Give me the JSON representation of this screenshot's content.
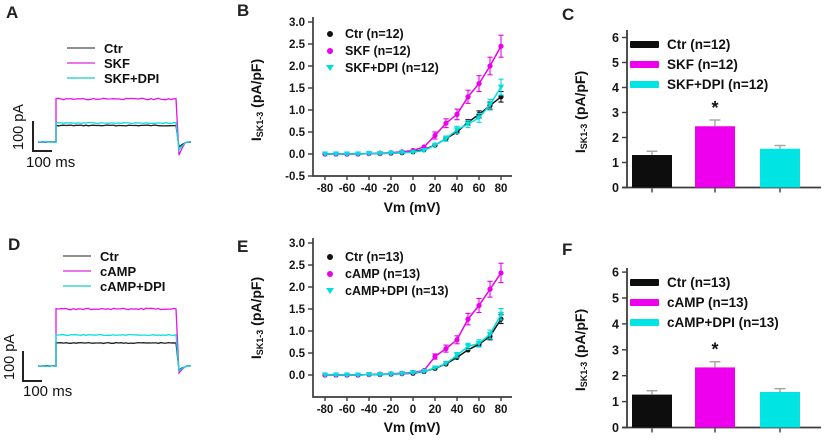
{
  "colors": {
    "black": "#121212",
    "magenta": "#ea00ea",
    "cyan": "#00dede",
    "axis": "#3c3c3c",
    "error_gray": "#a3a3a3"
  },
  "panels": {
    "A": {
      "label": "A",
      "legend": [
        {
          "label": "Ctr",
          "color": "#8f8f8f"
        },
        {
          "label": "SKF",
          "color": "#e878e8"
        },
        {
          "label": "SKF+DPI",
          "color": "#6fe0e0"
        }
      ],
      "scale_v": "100 pA",
      "scale_h": "100 ms",
      "baseline": 142,
      "x_start": 38,
      "x_on": 56,
      "x_off": 178,
      "x_end": 192,
      "traces": [
        {
          "name": "Ctr",
          "color": "#1f1f1f",
          "plateau": 125.5,
          "undershoot": 5
        },
        {
          "name": "SKF",
          "color": "#e813e8",
          "plateau": 99,
          "undershoot": 13
        },
        {
          "name": "SKF+DPI",
          "color": "#10dcdc",
          "plateau": 123,
          "undershoot": 8
        }
      ]
    },
    "D": {
      "label": "D",
      "legend": [
        {
          "label": "Ctr",
          "color": "#8f8f8f"
        },
        {
          "label": "cAMP",
          "color": "#e878e8"
        },
        {
          "label": "cAMP+DPI",
          "color": "#6fe0e0"
        }
      ],
      "scale_v": "100 pA",
      "scale_h": "100 ms",
      "baseline": 366,
      "x_start": 38,
      "x_on": 56,
      "x_off": 178,
      "x_end": 192,
      "traces": [
        {
          "name": "Ctr",
          "color": "#1f1f1f",
          "plateau": 343,
          "undershoot": 4
        },
        {
          "name": "cAMP",
          "color": "#e813e8",
          "plateau": 309,
          "undershoot": 7
        },
        {
          "name": "cAMP+DPI",
          "color": "#10dcdc",
          "plateau": 335,
          "undershoot": 5
        }
      ]
    },
    "B": {
      "label": "B"
    },
    "C": {
      "label": "C"
    },
    "E": {
      "label": "E"
    },
    "F": {
      "label": "F"
    }
  },
  "chart_data": [
    {
      "panel": "B",
      "type": "line",
      "xlabel": "Vm (mV)",
      "ylabel": {
        "pre": "I",
        "sub": "SK1-3",
        "post": " (pA/pF)"
      },
      "ylim": [
        -0.5,
        3.0
      ],
      "yticks": [
        -0.5,
        0.0,
        0.5,
        1.0,
        1.5,
        2.0,
        2.5,
        3.0
      ],
      "xticks": [
        -80,
        -60,
        -40,
        -20,
        0,
        20,
        40,
        60,
        80
      ],
      "x": [
        -80,
        -70,
        -60,
        -50,
        -40,
        -30,
        -20,
        -10,
        0,
        10,
        20,
        30,
        40,
        50,
        60,
        70,
        80
      ],
      "series": [
        {
          "name": "Ctr (n=12)",
          "color": "#121212",
          "marker": "circle",
          "values": [
            0,
            0,
            0,
            0,
            0.01,
            0.01,
            0.02,
            0.03,
            0.05,
            0.1,
            0.2,
            0.35,
            0.5,
            0.72,
            0.9,
            1.1,
            1.3
          ],
          "errors": [
            0.01,
            0.01,
            0.01,
            0.01,
            0.01,
            0.01,
            0.02,
            0.02,
            0.02,
            0.03,
            0.04,
            0.05,
            0.05,
            0.06,
            0.08,
            0.08,
            0.12
          ]
        },
        {
          "name": "SKF (n=12)",
          "color": "#ea00ea",
          "marker": "circle",
          "values": [
            0,
            0,
            0,
            0,
            0.01,
            0.02,
            0.03,
            0.05,
            0.08,
            0.16,
            0.42,
            0.7,
            0.9,
            1.3,
            1.6,
            2.0,
            2.45
          ],
          "errors": [
            0.01,
            0.01,
            0.01,
            0.01,
            0.01,
            0.02,
            0.02,
            0.03,
            0.03,
            0.05,
            0.08,
            0.1,
            0.12,
            0.15,
            0.18,
            0.2,
            0.25
          ]
        },
        {
          "name": "SKF+DPI (n=12)",
          "color": "#00dede",
          "marker": "triangle",
          "values": [
            0,
            0,
            0,
            0,
            0.01,
            0.01,
            0.02,
            0.03,
            0.04,
            0.08,
            0.2,
            0.35,
            0.55,
            0.68,
            0.82,
            1.12,
            1.52
          ],
          "errors": [
            0.01,
            0.01,
            0.01,
            0.01,
            0.01,
            0.01,
            0.02,
            0.02,
            0.02,
            0.03,
            0.05,
            0.06,
            0.08,
            0.08,
            0.1,
            0.12,
            0.18
          ]
        }
      ]
    },
    {
      "panel": "C",
      "type": "bar",
      "ylabel": {
        "pre": "I",
        "sub": "SK1-3",
        "post": " (pA/pF)"
      },
      "ylim": [
        0,
        6
      ],
      "yticks": [
        0,
        1,
        2,
        3,
        4,
        5,
        6
      ],
      "categories": [
        "Ctr (n=12)",
        "SKF (n=12)",
        "SKF+DPI (n=12)"
      ],
      "colors": [
        "#0d0d0d",
        "#ee00ee",
        "#00e4e4"
      ],
      "values": [
        1.3,
        2.45,
        1.55
      ],
      "errors": [
        0.15,
        0.25,
        0.13
      ],
      "sig": [
        "",
        "*",
        ""
      ]
    },
    {
      "panel": "E",
      "type": "line",
      "xlabel": "Vm (mV)",
      "ylabel": {
        "pre": "I",
        "sub": "SK1-3",
        "post": " (pA/pF)"
      },
      "ylim": [
        -0.5,
        3.0
      ],
      "yticks": [
        0.0,
        0.5,
        1.0,
        1.5,
        2.0,
        2.5,
        3.0
      ],
      "xticks": [
        -80,
        -60,
        -40,
        -20,
        0,
        20,
        40,
        60,
        80
      ],
      "x": [
        -80,
        -70,
        -60,
        -50,
        -40,
        -30,
        -20,
        -10,
        0,
        10,
        20,
        30,
        40,
        50,
        60,
        70,
        80
      ],
      "series": [
        {
          "name": "Ctr (n=13)",
          "color": "#121212",
          "marker": "circle",
          "values": [
            0,
            0,
            0,
            0,
            0.01,
            0.01,
            0.02,
            0.03,
            0.04,
            0.08,
            0.15,
            0.25,
            0.4,
            0.57,
            0.7,
            0.88,
            1.27
          ],
          "errors": [
            0.01,
            0.01,
            0.01,
            0.01,
            0.01,
            0.01,
            0.02,
            0.02,
            0.02,
            0.02,
            0.03,
            0.03,
            0.04,
            0.05,
            0.06,
            0.08,
            0.1
          ]
        },
        {
          "name": "cAMP (n=13)",
          "color": "#ea00ea",
          "marker": "circle",
          "values": [
            0,
            0,
            0,
            0,
            0.01,
            0.02,
            0.03,
            0.04,
            0.06,
            0.1,
            0.42,
            0.6,
            0.8,
            1.27,
            1.58,
            1.95,
            2.32
          ],
          "errors": [
            0.01,
            0.01,
            0.01,
            0.01,
            0.01,
            0.02,
            0.02,
            0.02,
            0.03,
            0.04,
            0.06,
            0.08,
            0.09,
            0.13,
            0.16,
            0.18,
            0.22
          ]
        },
        {
          "name": "cAMP+DPI (n=13)",
          "color": "#00dede",
          "marker": "triangle",
          "values": [
            0,
            0,
            0,
            0,
            0.01,
            0.01,
            0.02,
            0.03,
            0.05,
            0.08,
            0.16,
            0.26,
            0.45,
            0.65,
            0.72,
            0.92,
            1.38
          ],
          "errors": [
            0.01,
            0.01,
            0.01,
            0.01,
            0.01,
            0.01,
            0.02,
            0.02,
            0.02,
            0.03,
            0.04,
            0.05,
            0.06,
            0.07,
            0.08,
            0.1,
            0.13
          ]
        }
      ]
    },
    {
      "panel": "F",
      "type": "bar",
      "ylabel": {
        "pre": "I",
        "sub": "SK1-3",
        "post": " (pA/pF)"
      },
      "ylim": [
        0,
        6
      ],
      "yticks": [
        0,
        1,
        2,
        3,
        4,
        5,
        6
      ],
      "categories": [
        "Ctr (n=13)",
        "cAMP (n=13)",
        "cAMP+DPI (n=13)"
      ],
      "colors": [
        "#0d0d0d",
        "#ee00ee",
        "#00e4e4"
      ],
      "values": [
        1.27,
        2.32,
        1.37
      ],
      "errors": [
        0.15,
        0.22,
        0.13
      ],
      "sig": [
        "",
        "*",
        ""
      ]
    }
  ]
}
